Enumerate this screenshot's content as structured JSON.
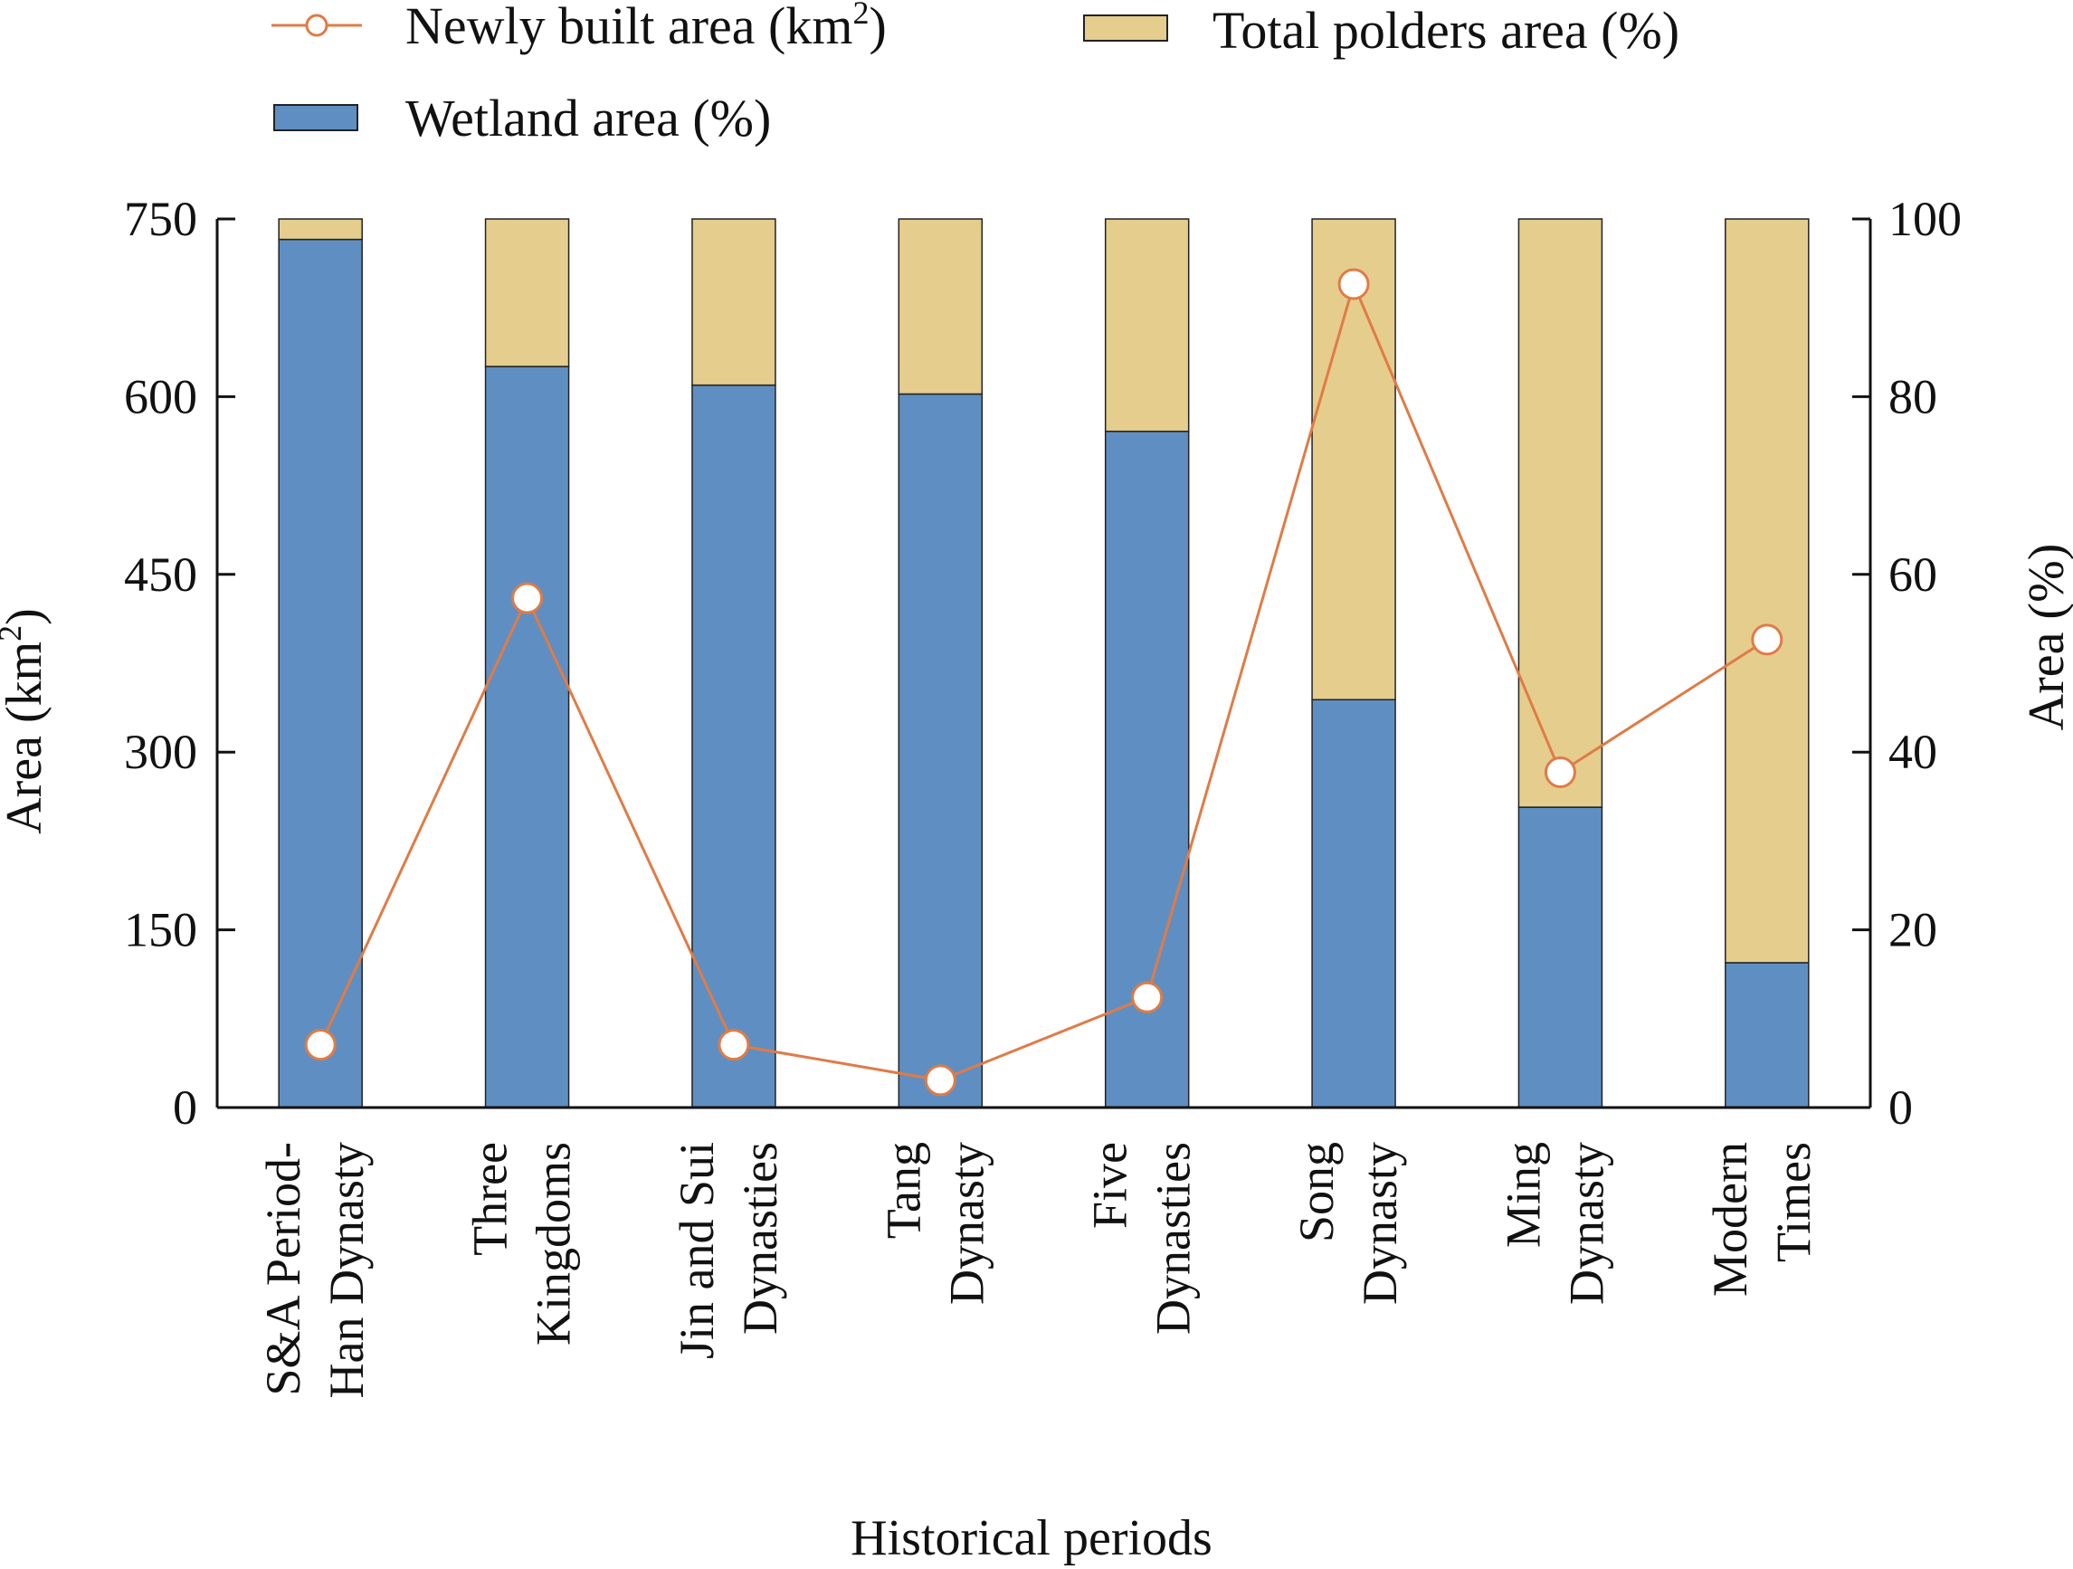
{
  "chart_data": {
    "type": "bar",
    "stacked": true,
    "categories": [
      [
        "S&A Period-",
        "Han Dynasty"
      ],
      [
        "Three",
        "Kingdoms"
      ],
      [
        "Jin and Sui",
        "Dynasties"
      ],
      [
        "Tang",
        "Dynasty"
      ],
      [
        "Five",
        "Dynasties"
      ],
      [
        "Song",
        "Dynasty"
      ],
      [
        "Ming",
        "Dynasty"
      ],
      [
        "Modern",
        "Times"
      ]
    ],
    "xlabel": "Historical periods",
    "ylabel_left": {
      "text": "Area (km",
      "sup": "2",
      "tail": ")"
    },
    "ylabel_right": "Area (%)",
    "left_axis": {
      "min": 0,
      "max": 750,
      "ticks": [
        0,
        150,
        300,
        450,
        600,
        750
      ]
    },
    "right_axis": {
      "min": 0,
      "max": 100,
      "ticks": [
        0,
        20,
        40,
        60,
        80,
        100
      ]
    },
    "series": [
      {
        "name": "Wetland area (%)",
        "type": "bar",
        "axis": "right",
        "color": "#5f8fc2",
        "values": [
          97.7,
          83.4,
          81.3,
          80.3,
          76.1,
          45.9,
          33.8,
          16.3
        ]
      },
      {
        "name": "Total polders area (%)",
        "type": "bar",
        "axis": "right",
        "color": "#e5cd8e",
        "values": [
          2.3,
          16.6,
          18.7,
          19.7,
          23.9,
          54.1,
          66.2,
          83.7
        ]
      },
      {
        "name": "Newly built area (km2)",
        "type": "line",
        "axis": "left",
        "color": "#e07b46",
        "values": [
          53,
          430,
          53,
          23,
          93,
          695,
          283,
          395
        ]
      }
    ],
    "legend": {
      "position": "top",
      "items": [
        {
          "label": "Newly built area (km",
          "sup": "2",
          "tail": ")",
          "kind": "line"
        },
        {
          "label": "Total polders area (%)",
          "kind": "bar"
        },
        {
          "label": "Wetland area (%)",
          "kind": "bar"
        }
      ]
    },
    "grid": false
  }
}
